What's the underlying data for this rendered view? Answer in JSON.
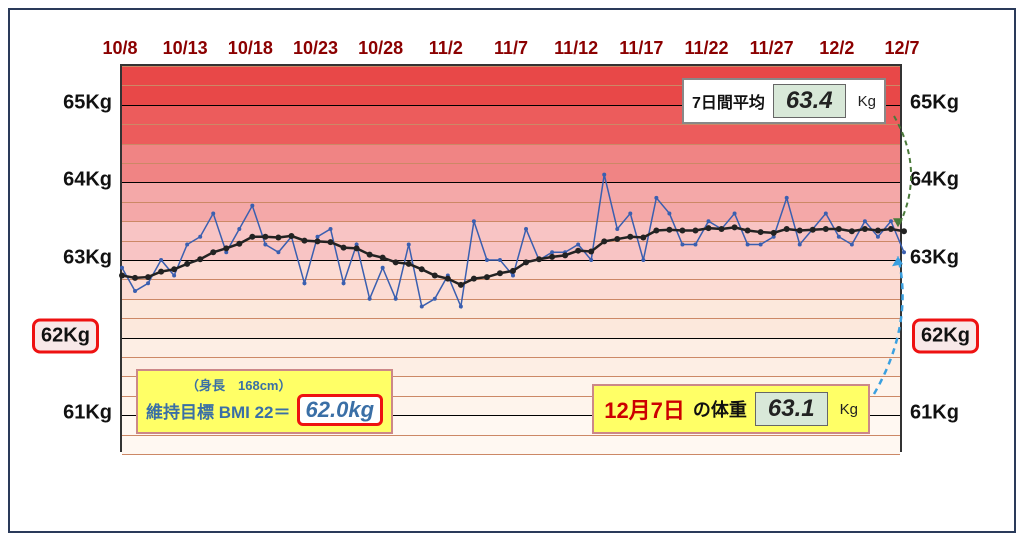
{
  "chart": {
    "type": "line",
    "ylim": [
      60.5,
      65.5
    ],
    "ytick_major": [
      61,
      62,
      63,
      64,
      65
    ],
    "ytick_minor_step": 0.25,
    "ytick_unit": "Kg",
    "y_highlight": 62,
    "xlabels": [
      "10/8",
      "10/13",
      "10/18",
      "10/23",
      "10/28",
      "11/2",
      "11/7",
      "11/12",
      "11/17",
      "11/22",
      "11/27",
      "12/2",
      "12/7"
    ],
    "x_count": 61,
    "bands": [
      {
        "from": 65.5,
        "to": 65.0,
        "color": "#e84848"
      },
      {
        "from": 65.0,
        "to": 64.5,
        "color": "#ec5c5c"
      },
      {
        "from": 64.5,
        "to": 64.0,
        "color": "#f08484"
      },
      {
        "from": 64.0,
        "to": 63.5,
        "color": "#f4a8a8"
      },
      {
        "from": 63.5,
        "to": 63.0,
        "color": "#f8c4c4"
      },
      {
        "from": 63.0,
        "to": 62.5,
        "color": "#fcdcd4"
      },
      {
        "from": 62.5,
        "to": 62.0,
        "color": "#fce8dc"
      },
      {
        "from": 62.0,
        "to": 61.5,
        "color": "#fdeee4"
      },
      {
        "from": 61.5,
        "to": 61.0,
        "color": "#fef4ec"
      },
      {
        "from": 61.0,
        "to": 60.5,
        "color": "#fff8f2"
      }
    ],
    "grid_major_color": "#000000",
    "grid_minor_color": "#cc8866",
    "daily": {
      "color": "#3a5fb0",
      "width": 1.5,
      "marker_size": 2,
      "values": [
        62.9,
        62.6,
        62.7,
        63.0,
        62.8,
        63.2,
        63.3,
        63.6,
        63.1,
        63.4,
        63.7,
        63.2,
        63.1,
        63.3,
        62.7,
        63.3,
        63.4,
        62.7,
        63.2,
        62.5,
        62.9,
        62.5,
        63.2,
        62.4,
        62.5,
        62.8,
        62.4,
        63.5,
        63.0,
        63.0,
        62.8,
        63.4,
        63.0,
        63.1,
        63.1,
        63.2,
        63.0,
        64.1,
        63.4,
        63.6,
        63.0,
        63.8,
        63.6,
        63.2,
        63.2,
        63.5,
        63.4,
        63.6,
        63.2,
        63.2,
        63.3,
        63.8,
        63.2,
        63.4,
        63.6,
        63.3,
        63.2,
        63.5,
        63.3,
        63.5,
        63.1
      ]
    },
    "avg": {
      "color": "#222222",
      "width": 2.5,
      "marker_size": 3,
      "values": [
        62.8,
        62.77,
        62.78,
        62.85,
        62.88,
        62.95,
        63.01,
        63.1,
        63.15,
        63.21,
        63.3,
        63.3,
        63.29,
        63.31,
        63.25,
        63.24,
        63.23,
        63.16,
        63.15,
        63.07,
        63.03,
        62.97,
        62.95,
        62.88,
        62.8,
        62.76,
        62.68,
        62.76,
        62.78,
        62.83,
        62.86,
        62.97,
        63.01,
        63.04,
        63.06,
        63.12,
        63.11,
        63.24,
        63.27,
        63.3,
        63.29,
        63.38,
        63.39,
        63.38,
        63.38,
        63.41,
        63.4,
        63.42,
        63.38,
        63.36,
        63.35,
        63.4,
        63.38,
        63.39,
        63.4,
        63.4,
        63.37,
        63.4,
        63.38,
        63.4,
        63.37
      ]
    },
    "arrow_avg": {
      "color": "#4a7a3a",
      "dash": "5,4"
    },
    "arrow_today": {
      "color": "#3aa0e0",
      "dash": "6,5"
    }
  },
  "xlabel_color": "#8b0000",
  "bmi": {
    "height_label": "（身長　168cm）",
    "text": "維持目標 BMI 22＝",
    "value": "62.0kg"
  },
  "today": {
    "date": "12月7日",
    "label": "の体重",
    "value": "63.1",
    "unit": "Kg"
  },
  "avg_box": {
    "label": "7日間平均",
    "value": "63.4",
    "unit": "Kg"
  }
}
